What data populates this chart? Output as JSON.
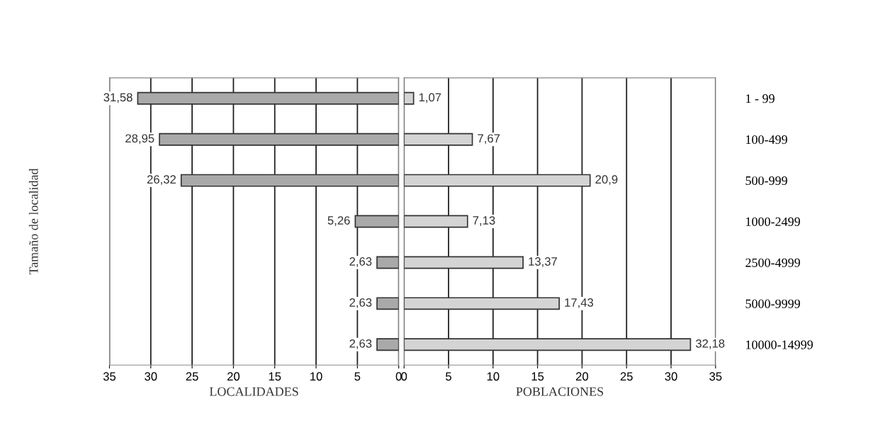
{
  "chart_data": [
    {
      "type": "bar",
      "orientation": "horizontal",
      "xlabel": "LOCALIDADES",
      "ylabel": "Tamaño de localidad",
      "categories": [
        null,
        null,
        null,
        null,
        null,
        null,
        null
      ],
      "series": [
        {
          "color": "#a9a9a9",
          "values": [
            31.58,
            28.95,
            26.32,
            5.26,
            2.63,
            2.63,
            2.63
          ],
          "value_labels": [
            "31,58",
            "28,95",
            "26,32",
            "5,26",
            "2,63",
            "2,63",
            "2,63"
          ]
        }
      ],
      "xlim": [
        35,
        0
      ],
      "xticks": [
        35,
        30,
        25,
        20,
        15,
        10,
        5,
        0
      ],
      "grid": "x",
      "tick_labels": "x"
    },
    {
      "type": "bar",
      "orientation": "horizontal",
      "xlabel": "POBLACIONES",
      "categories": [
        "1 - 99",
        "100-499",
        "500-999",
        "1000-2499",
        "2500-4999",
        "5000-9999",
        "10000-14999"
      ],
      "series": [
        {
          "color": "#d4d4d4",
          "values": [
            1.07,
            7.67,
            20.9,
            7.13,
            13.37,
            17.43,
            32.18
          ],
          "value_labels": [
            "1,07",
            "7,67",
            "20,9",
            "7,13",
            "13,37",
            "17,43",
            "32,18"
          ]
        }
      ],
      "xlim": [
        0,
        35
      ],
      "xticks": [
        0,
        5,
        10,
        15,
        20,
        25,
        30,
        35
      ],
      "grid": "x"
    }
  ]
}
